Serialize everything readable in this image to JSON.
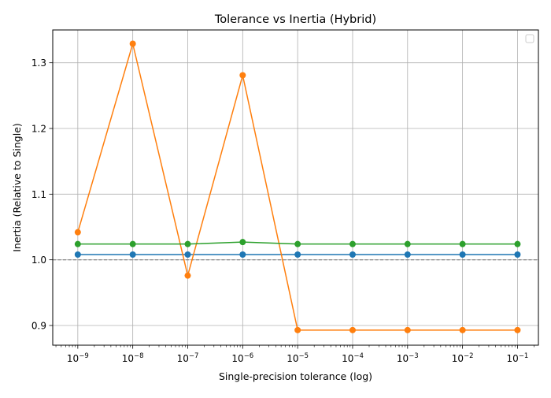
{
  "chart_data": {
    "type": "line",
    "title": "Tolerance vs Inertia (Hybrid)",
    "xlabel": "Single-precision tolerance (log)",
    "ylabel": "Inertia (Relative to Single)",
    "xscale": "log",
    "xlim": [
      3.5e-10,
      0.24
    ],
    "ylim": [
      0.87,
      1.35
    ],
    "x": [
      1e-09,
      1e-08,
      1e-07,
      1e-06,
      1e-05,
      0.0001,
      0.001,
      0.01,
      0.1
    ],
    "xtick_labels": [
      {
        "base": "10",
        "exp": "−9"
      },
      {
        "base": "10",
        "exp": "−8"
      },
      {
        "base": "10",
        "exp": "−7"
      },
      {
        "base": "10",
        "exp": "−6"
      },
      {
        "base": "10",
        "exp": "−5"
      },
      {
        "base": "10",
        "exp": "−4"
      },
      {
        "base": "10",
        "exp": "−3"
      },
      {
        "base": "10",
        "exp": "−2"
      },
      {
        "base": "10",
        "exp": "−1"
      }
    ],
    "yticks": [
      0.9,
      1.0,
      1.1,
      1.2,
      1.3
    ],
    "ytick_labels": [
      "0.9",
      "1.0",
      "1.1",
      "1.2",
      "1.3"
    ],
    "grid": true,
    "legend": "top-right, empty",
    "reference_line": {
      "y": 1.0,
      "style": "dashed",
      "color": "#808080"
    },
    "series": [
      {
        "color": "#1f77b4",
        "values": [
          1.008,
          1.008,
          1.008,
          1.008,
          1.008,
          1.008,
          1.008,
          1.008,
          1.008
        ]
      },
      {
        "color": "#ff7f0e",
        "values": [
          1.042,
          1.329,
          0.976,
          1.281,
          0.893,
          0.893,
          0.893,
          0.893,
          0.893
        ]
      },
      {
        "color": "#2ca02c",
        "values": [
          1.024,
          1.024,
          1.024,
          1.027,
          1.024,
          1.024,
          1.024,
          1.024,
          1.024
        ]
      }
    ]
  }
}
